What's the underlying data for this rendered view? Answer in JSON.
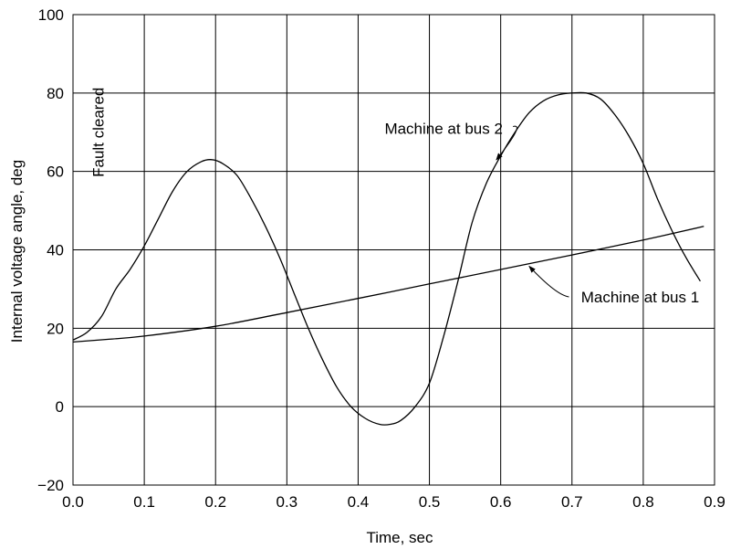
{
  "chart_data": {
    "type": "line",
    "title": "",
    "xlabel": "Time, sec",
    "ylabel": "Internal voltage angle, deg",
    "xlim": [
      0.0,
      0.9
    ],
    "ylim": [
      -20,
      100
    ],
    "xticks": [
      0.0,
      0.1,
      0.2,
      0.3,
      0.4,
      0.5,
      0.6,
      0.7,
      0.8,
      0.9
    ],
    "xtick_labels": [
      "0.0",
      "0.1",
      "0.2",
      "0.3",
      "0.4",
      "0.5",
      "0.6",
      "0.7",
      "0.8",
      "0.9"
    ],
    "yticks": [
      -20,
      0,
      20,
      40,
      60,
      80,
      100
    ],
    "ytick_labels": [
      "−20",
      "0",
      "20",
      "40",
      "60",
      "80",
      "100"
    ],
    "grid": true,
    "series": [
      {
        "name": "Machine at bus 2",
        "x": [
          0.0,
          0.02,
          0.04,
          0.06,
          0.08,
          0.1,
          0.12,
          0.14,
          0.16,
          0.18,
          0.195,
          0.21,
          0.23,
          0.25,
          0.27,
          0.29,
          0.31,
          0.33,
          0.35,
          0.37,
          0.39,
          0.41,
          0.43,
          0.445,
          0.46,
          0.48,
          0.5,
          0.52,
          0.54,
          0.56,
          0.58,
          0.6,
          0.62,
          0.64,
          0.66,
          0.68,
          0.7,
          0.72,
          0.74,
          0.76,
          0.78,
          0.8,
          0.82,
          0.84,
          0.86,
          0.88
        ],
        "y": [
          17,
          19,
          23,
          30,
          35,
          41,
          48,
          55,
          60,
          62.5,
          63,
          62,
          59,
          53,
          46,
          38,
          29,
          20,
          12,
          5,
          0,
          -3,
          -4.5,
          -4.5,
          -3.5,
          0,
          6,
          18,
          32,
          47,
          57,
          64,
          70,
          75,
          78,
          79.5,
          80,
          80,
          78.5,
          74.5,
          69,
          62,
          53,
          45,
          38,
          32
        ]
      },
      {
        "name": "Machine at bus 1",
        "x": [
          0.0,
          0.05,
          0.1,
          0.2,
          0.3,
          0.4,
          0.5,
          0.6,
          0.7,
          0.8,
          0.885
        ],
        "y": [
          16.5,
          17.2,
          18.0,
          20.5,
          24.0,
          27.6,
          31.3,
          35.0,
          38.7,
          42.5,
          46.0
        ]
      }
    ],
    "annotations": [
      {
        "text": "Fault cleared",
        "x": 0.035,
        "y": 70,
        "rotation": -90
      },
      {
        "text": "Machine at bus 2",
        "x": 0.52,
        "y": 71
      },
      {
        "text": "Machine at bus 1",
        "x": 0.77,
        "y": 28
      }
    ]
  }
}
